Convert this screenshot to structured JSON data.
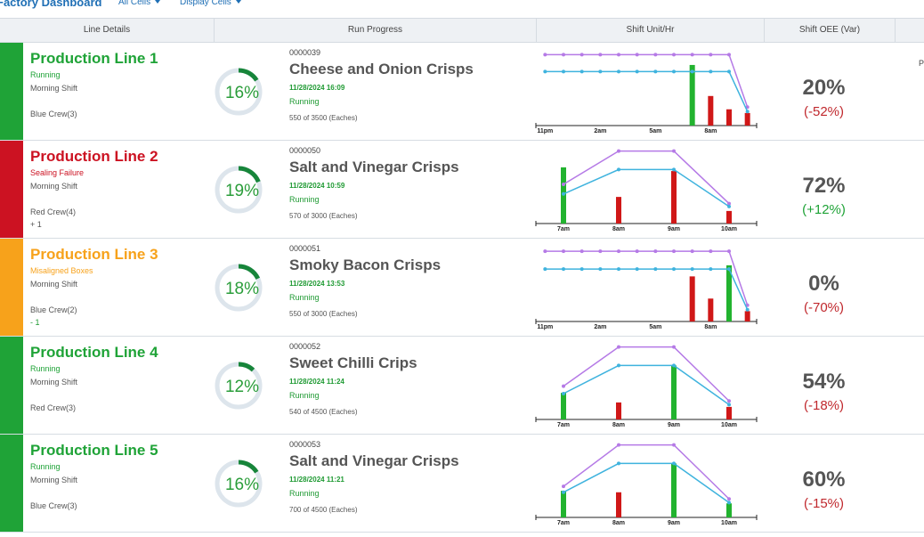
{
  "header": {
    "title": "Factory Dashboard",
    "menus": [
      "All Cells",
      "Display Cells"
    ]
  },
  "columns": [
    "Line Details",
    "Run Progress",
    "Shift Unit/Hr",
    "Shift OEE (Var)"
  ],
  "lines": [
    {
      "name": "Production Line 1",
      "status": "Running",
      "color": "#1fa337",
      "shift": "Morning Shift",
      "crew": "Blue Crew(3)",
      "order": "0000039",
      "product": "Cheese and Onion Crisps",
      "date": "11/28/2024 16:09",
      "run_status": "Running",
      "count": "550 of 3500 (Eaches)",
      "progress": {
        "value": 16,
        "label": "16%"
      },
      "oee": "20%",
      "oee_var": "(-52%)",
      "var_color": "#c0282d",
      "extra": "P",
      "chart": {
        "categories": [
          "11pm",
          null,
          null,
          "2am",
          null,
          null,
          "5am",
          null,
          null,
          "8am",
          null,
          null
        ],
        "ylim": [
          0,
          100
        ],
        "bars": {
          "values": [
            null,
            null,
            null,
            null,
            null,
            null,
            null,
            null,
            82,
            40,
            22,
            17
          ],
          "colors": [
            null,
            null,
            null,
            null,
            null,
            null,
            null,
            null,
            "#22b32f",
            "#d01818",
            "#d01818",
            "#d01818"
          ]
        },
        "lines": [
          {
            "color": "#b57ae6",
            "values": [
              96,
              96,
              96,
              96,
              96,
              96,
              96,
              96,
              96,
              96,
              96,
              25
            ]
          },
          {
            "color": "#3fb3de",
            "values": [
              73,
              73,
              73,
              73,
              73,
              73,
              73,
              73,
              73,
              73,
              73,
              19
            ]
          }
        ]
      }
    },
    {
      "name": "Production Line 2",
      "status": "Sealing Failure",
      "color": "#cc1222",
      "shift": "Morning Shift",
      "crew": "Red Crew(4)",
      "crew_delta": "+ 1",
      "order": "0000050",
      "product": "Salt and Vinegar Crisps",
      "date": "11/28/2024 10:59",
      "run_status": "Running",
      "count": "570 of 3000 (Eaches)",
      "progress": {
        "value": 19,
        "label": "19%"
      },
      "oee": "72%",
      "oee_var": "(+12%)",
      "var_color": "#1fa337",
      "chart": {
        "categories": [
          "7am",
          "8am",
          "9am",
          "10am"
        ],
        "ylim": [
          0,
          100
        ],
        "bars": {
          "values": [
            76,
            36,
            71,
            17
          ],
          "colors": [
            "#22b32f",
            "#d01818",
            "#d01818",
            "#d01818"
          ]
        },
        "lines": [
          {
            "color": "#b57ae6",
            "values": [
              53,
              98,
              98,
              27
            ]
          },
          {
            "color": "#3fb3de",
            "values": [
              40,
              73,
              73,
              23
            ]
          }
        ]
      }
    },
    {
      "name": "Production Line 3",
      "status": "Misaligned Boxes",
      "color": "#f7a21b",
      "shift": "Morning Shift",
      "crew": "Blue Crew(2)",
      "crew_delta": "- 1",
      "order": "0000051",
      "product": "Smoky Bacon Crisps",
      "date": "11/28/2024 13:53",
      "run_status": "Running",
      "count": "550 of 3000 (Eaches)",
      "progress": {
        "value": 18,
        "label": "18%"
      },
      "oee": "0%",
      "oee_var": "(-70%)",
      "var_color": "#c0282d",
      "chart": {
        "categories": [
          "11pm",
          null,
          null,
          "2am",
          null,
          null,
          "5am",
          null,
          null,
          "8am",
          null,
          null
        ],
        "ylim": [
          0,
          100
        ],
        "bars": {
          "values": [
            null,
            null,
            null,
            null,
            null,
            null,
            null,
            null,
            61,
            31,
            76,
            14
          ],
          "colors": [
            null,
            null,
            null,
            null,
            null,
            null,
            null,
            null,
            "#d01818",
            "#d01818",
            "#22b32f",
            "#d01818"
          ]
        },
        "lines": [
          {
            "color": "#b57ae6",
            "values": [
              95,
              95,
              95,
              95,
              95,
              95,
              95,
              95,
              95,
              95,
              95,
              22
            ]
          },
          {
            "color": "#3fb3de",
            "values": [
              71,
              71,
              71,
              71,
              71,
              71,
              71,
              71,
              71,
              71,
              71,
              16
            ]
          }
        ]
      }
    },
    {
      "name": "Production Line 4",
      "status": "Running",
      "color": "#1fa337",
      "shift": "Morning Shift",
      "crew": "Red Crew(3)",
      "order": "0000052",
      "product": "Sweet Chilli Crips",
      "date": "11/28/2024 11:24",
      "run_status": "Running",
      "count": "540 of 4500 (Eaches)",
      "progress": {
        "value": 12,
        "label": "12%"
      },
      "oee": "54%",
      "oee_var": "(-18%)",
      "var_color": "#c0282d",
      "chart": {
        "categories": [
          "7am",
          "8am",
          "9am",
          "10am"
        ],
        "ylim": [
          0,
          100
        ],
        "bars": {
          "values": [
            36,
            23,
            73,
            17
          ],
          "colors": [
            "#22b32f",
            "#d01818",
            "#22b32f",
            "#d01818"
          ]
        },
        "lines": [
          {
            "color": "#b57ae6",
            "values": [
              45,
              98,
              98,
              25
            ]
          },
          {
            "color": "#3fb3de",
            "values": [
              35,
              73,
              73,
              20
            ]
          }
        ]
      }
    },
    {
      "name": "Production Line 5",
      "status": "Running",
      "color": "#1fa337",
      "shift": "Morning Shift",
      "crew": "Blue Crew(3)",
      "order": "0000053",
      "product": "Salt and Vinegar Crisps",
      "date": "11/28/2024 11:21",
      "run_status": "Running",
      "count": "700 of 4500 (Eaches)",
      "progress": {
        "value": 16,
        "label": "16%"
      },
      "oee": "60%",
      "oee_var": "(-15%)",
      "var_color": "#c0282d",
      "chart": {
        "categories": [
          "7am",
          "8am",
          "9am",
          "10am"
        ],
        "ylim": [
          0,
          100
        ],
        "bars": {
          "values": [
            36,
            34,
            73,
            19
          ],
          "colors": [
            "#22b32f",
            "#d01818",
            "#22b32f",
            "#22b32f"
          ]
        },
        "lines": [
          {
            "color": "#b57ae6",
            "values": [
              42,
              98,
              98,
              25
            ]
          },
          {
            "color": "#3fb3de",
            "values": [
              34,
              73,
              73,
              20
            ]
          }
        ]
      }
    }
  ]
}
